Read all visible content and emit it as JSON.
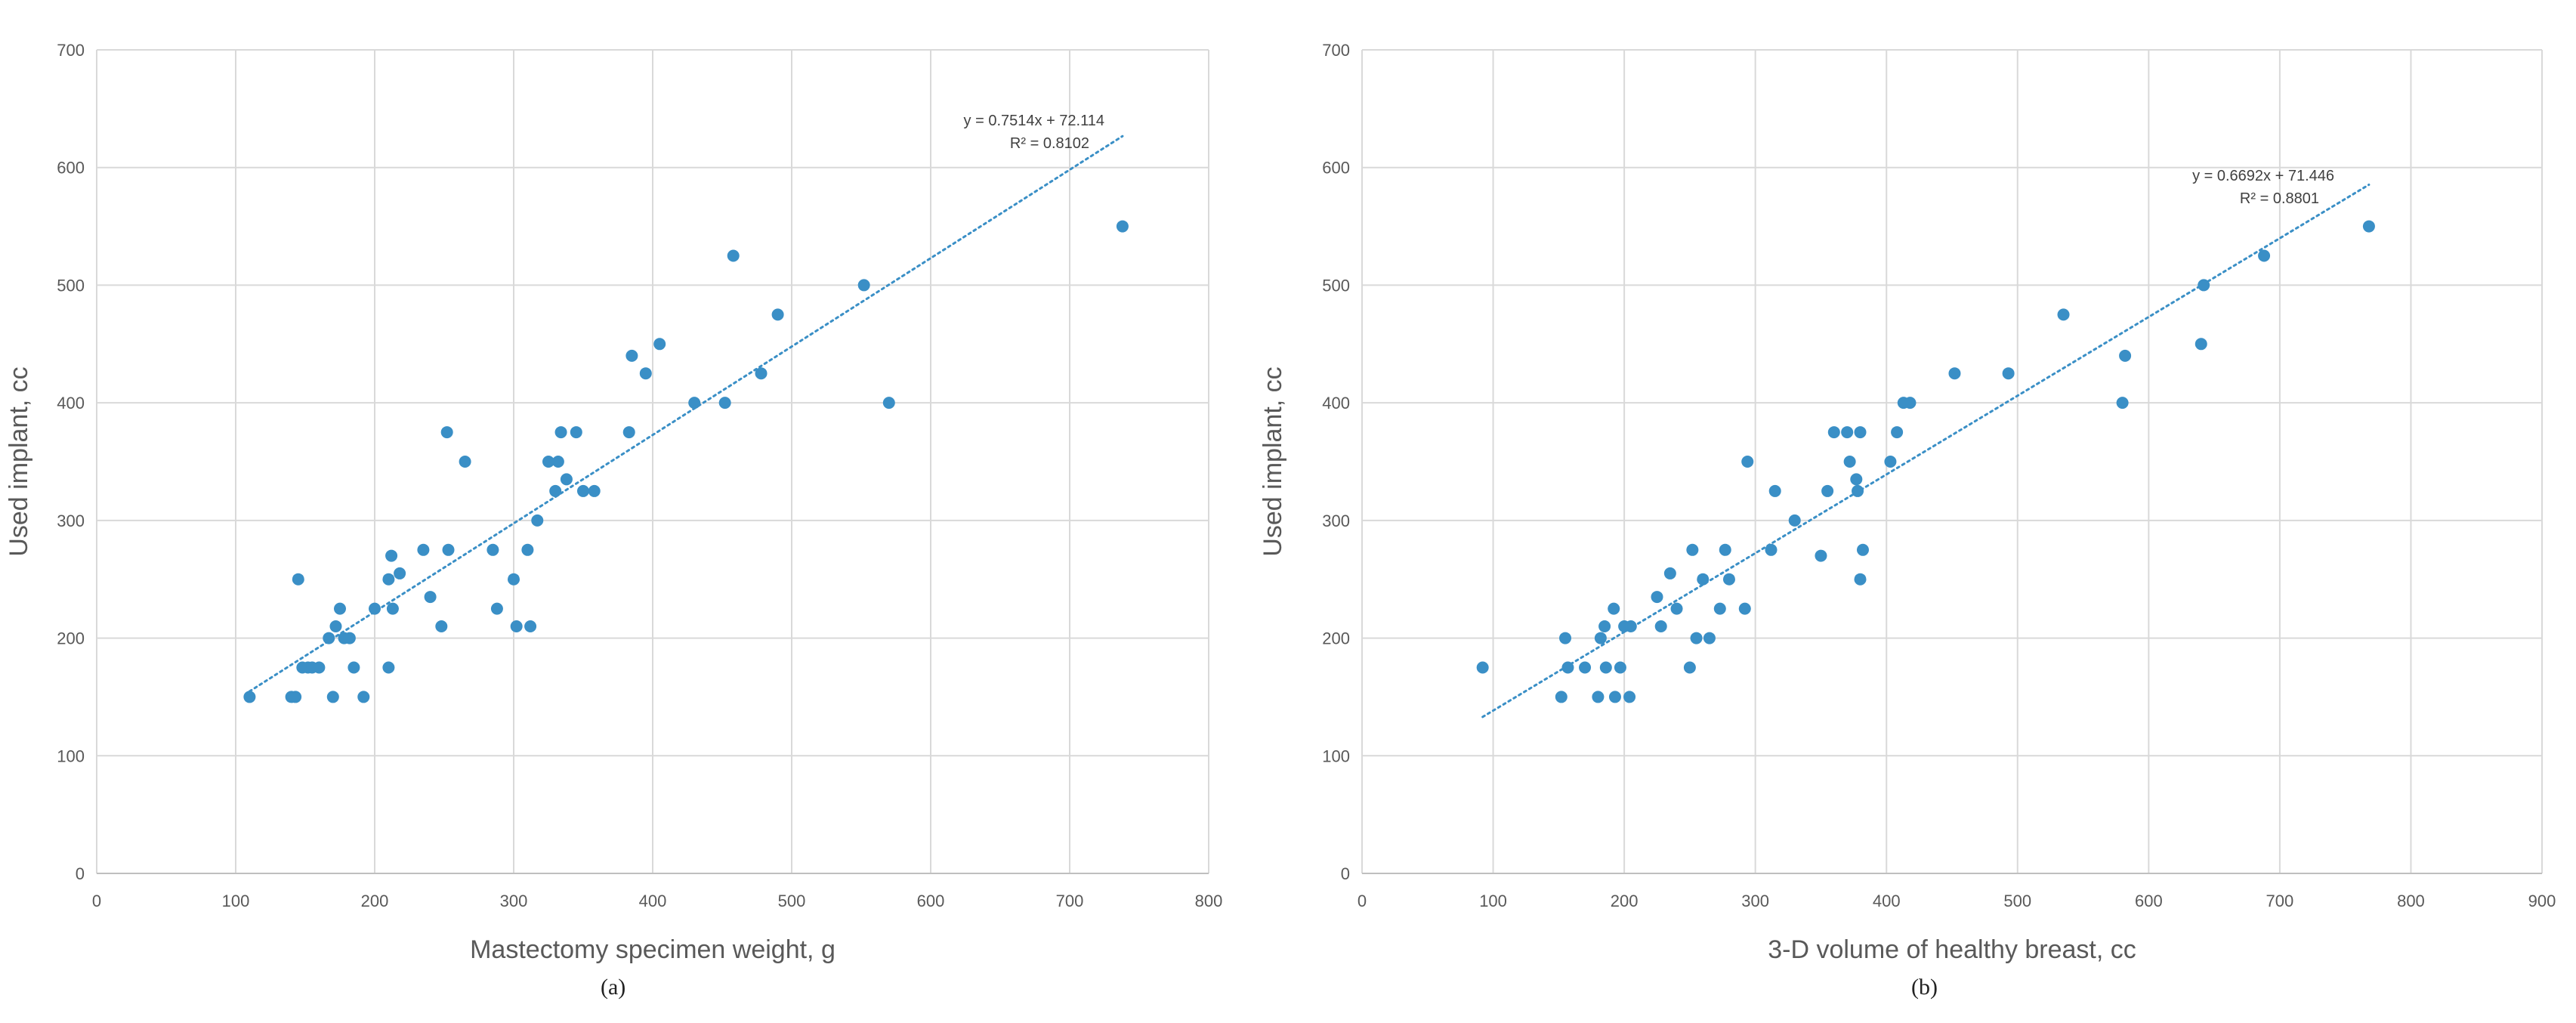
{
  "chart_data": [
    {
      "type": "scatter",
      "caption": "(a)",
      "xlabel": "Mastectomy specimen weight, g",
      "ylabel": "Used implant, cc",
      "xlim": [
        0,
        800
      ],
      "ylim": [
        0,
        700
      ],
      "xticks": [
        0,
        100,
        200,
        300,
        400,
        500,
        600,
        700,
        800
      ],
      "yticks": [
        0,
        100,
        200,
        300,
        400,
        500,
        600,
        700
      ],
      "grid": true,
      "marker_color": "#3a8fc6",
      "trendline": {
        "slope": 0.7514,
        "intercept": 72.114,
        "x_range": [
          110,
          738
        ],
        "equation": "y = 0.7514x + 72.114",
        "r2": "R² = 0.8102",
        "style": "dotted"
      },
      "points": [
        [
          110,
          150
        ],
        [
          140,
          150
        ],
        [
          143,
          150
        ],
        [
          145,
          250
        ],
        [
          148,
          175
        ],
        [
          152,
          175
        ],
        [
          155,
          175
        ],
        [
          160,
          175
        ],
        [
          167,
          200
        ],
        [
          170,
          150
        ],
        [
          172,
          210
        ],
        [
          175,
          225
        ],
        [
          178,
          200
        ],
        [
          182,
          200
        ],
        [
          185,
          175
        ],
        [
          192,
          150
        ],
        [
          200,
          225
        ],
        [
          210,
          175
        ],
        [
          210,
          250
        ],
        [
          212,
          270
        ],
        [
          213,
          225
        ],
        [
          218,
          255
        ],
        [
          235,
          275
        ],
        [
          240,
          235
        ],
        [
          248,
          210
        ],
        [
          252,
          375
        ],
        [
          253,
          275
        ],
        [
          265,
          350
        ],
        [
          285,
          275
        ],
        [
          288,
          225
        ],
        [
          300,
          250
        ],
        [
          302,
          210
        ],
        [
          310,
          275
        ],
        [
          312,
          210
        ],
        [
          317,
          300
        ],
        [
          325,
          350
        ],
        [
          330,
          325
        ],
        [
          332,
          350
        ],
        [
          334,
          375
        ],
        [
          338,
          335
        ],
        [
          345,
          375
        ],
        [
          350,
          325
        ],
        [
          358,
          325
        ],
        [
          383,
          375
        ],
        [
          385,
          440
        ],
        [
          395,
          425
        ],
        [
          405,
          450
        ],
        [
          430,
          400
        ],
        [
          452,
          400
        ],
        [
          458,
          525
        ],
        [
          478,
          425
        ],
        [
          490,
          475
        ],
        [
          552,
          500
        ],
        [
          570,
          400
        ],
        [
          738,
          550
        ]
      ]
    },
    {
      "type": "scatter",
      "caption": "(b)",
      "xlabel": "3-D volume of healthy breast, cc",
      "ylabel": "Used implant, cc",
      "xlim": [
        0,
        900
      ],
      "ylim": [
        0,
        700
      ],
      "xticks": [
        0,
        100,
        200,
        300,
        400,
        500,
        600,
        700,
        800,
        900
      ],
      "yticks": [
        0,
        100,
        200,
        300,
        400,
        500,
        600,
        700
      ],
      "grid": true,
      "marker_color": "#3a8fc6",
      "trendline": {
        "slope": 0.6692,
        "intercept": 71.446,
        "x_range": [
          92,
          768
        ],
        "equation": "y = 0.6692x + 71.446",
        "r2": "R² = 0.8801",
        "style": "dotted"
      },
      "points": [
        [
          92,
          175
        ],
        [
          152,
          150
        ],
        [
          155,
          200
        ],
        [
          157,
          175
        ],
        [
          170,
          175
        ],
        [
          180,
          150
        ],
        [
          182,
          200
        ],
        [
          185,
          210
        ],
        [
          186,
          175
        ],
        [
          192,
          225
        ],
        [
          193,
          150
        ],
        [
          197,
          175
        ],
        [
          200,
          210
        ],
        [
          204,
          150
        ],
        [
          205,
          210
        ],
        [
          225,
          235
        ],
        [
          228,
          210
        ],
        [
          235,
          255
        ],
        [
          240,
          225
        ],
        [
          250,
          175
        ],
        [
          252,
          275
        ],
        [
          255,
          200
        ],
        [
          260,
          250
        ],
        [
          265,
          200
        ],
        [
          273,
          225
        ],
        [
          277,
          275
        ],
        [
          280,
          250
        ],
        [
          292,
          225
        ],
        [
          294,
          350
        ],
        [
          312,
          275
        ],
        [
          315,
          325
        ],
        [
          330,
          300
        ],
        [
          350,
          270
        ],
        [
          355,
          325
        ],
        [
          360,
          375
        ],
        [
          370,
          375
        ],
        [
          372,
          350
        ],
        [
          377,
          335
        ],
        [
          378,
          325
        ],
        [
          380,
          375
        ],
        [
          380,
          250
        ],
        [
          382,
          275
        ],
        [
          403,
          350
        ],
        [
          408,
          375
        ],
        [
          413,
          400
        ],
        [
          418,
          400
        ],
        [
          452,
          425
        ],
        [
          493,
          425
        ],
        [
          535,
          475
        ],
        [
          580,
          400
        ],
        [
          582,
          440
        ],
        [
          640,
          450
        ],
        [
          642,
          500
        ],
        [
          688,
          525
        ],
        [
          768,
          550
        ]
      ]
    }
  ]
}
